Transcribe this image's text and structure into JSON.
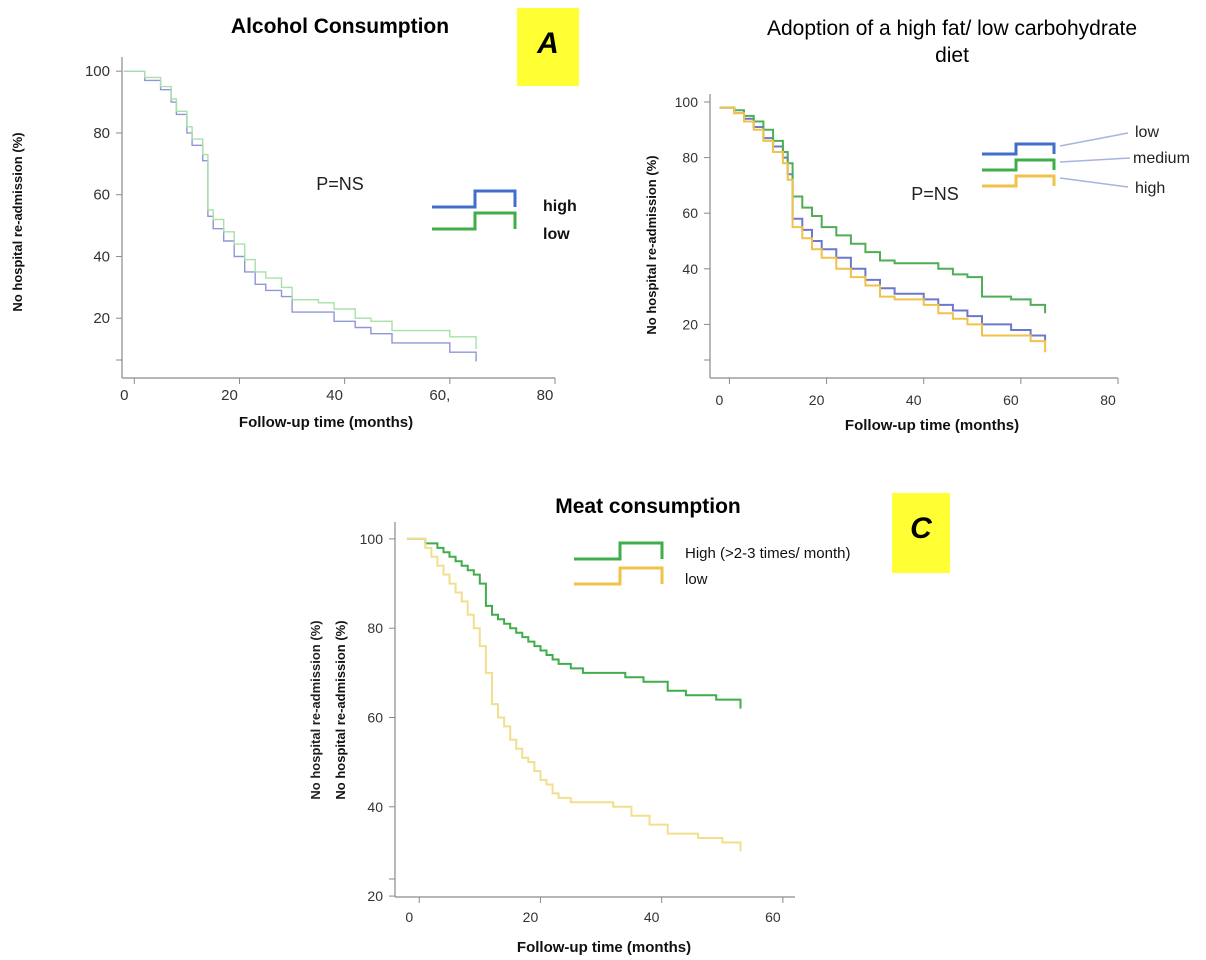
{
  "chart_data": [
    {
      "type": "line",
      "step": true,
      "panel_label": "A",
      "title": "Alcohol Consumption",
      "annotation": "P=NS",
      "xlabel": "Follow-up time (months)",
      "ylabel": "No hospital re-admission (%)",
      "xlim": [
        -5,
        80
      ],
      "ylim": [
        0,
        102
      ],
      "xticks": [
        0,
        20,
        40,
        60,
        80
      ],
      "xtick_labels": [
        "0",
        "20",
        "40",
        "60,",
        "80"
      ],
      "yticks": [
        20,
        40,
        60,
        80,
        100
      ],
      "ytick_labels": [
        "20",
        "40",
        "60",
        "80",
        "100"
      ],
      "legend_position": "right",
      "series": [
        {
          "name": "high",
          "color": "#8f96d8",
          "legend_color": "#3f6fc8",
          "bold": true,
          "x": [
            -2,
            2,
            5,
            7,
            8,
            10,
            11,
            13,
            14,
            15,
            17,
            19,
            21,
            23,
            25,
            28,
            30,
            35,
            38,
            42,
            45,
            49,
            55,
            60,
            65
          ],
          "y": [
            100,
            97,
            94,
            90,
            86,
            80,
            76,
            71,
            53,
            49,
            45,
            40,
            35,
            31,
            29,
            27,
            22,
            22,
            19,
            17,
            15,
            12,
            12,
            9,
            6
          ]
        },
        {
          "name": "low",
          "color": "#a8e0a8",
          "legend_color": "#3fae4a",
          "bold": true,
          "x": [
            -2,
            2,
            5,
            7,
            8,
            10,
            11,
            13,
            14,
            15,
            17,
            19,
            21,
            23,
            25,
            28,
            30,
            35,
            38,
            42,
            45,
            49,
            55,
            60,
            65
          ],
          "y": [
            100,
            98,
            95,
            91,
            87,
            82,
            78,
            73,
            55,
            52,
            48,
            44,
            39,
            35,
            33,
            30,
            26,
            25,
            23,
            20,
            19,
            16,
            16,
            14,
            10
          ]
        }
      ]
    },
    {
      "type": "line",
      "step": true,
      "title": "Adoption of a high fat/ low carbohydrate diet",
      "annotation": "P=NS",
      "xlabel": "Follow-up time (months)",
      "ylabel": "No hospital re-admission (%)",
      "xlim": [
        -4,
        80
      ],
      "ylim": [
        0,
        100
      ],
      "xticks": [
        0,
        20,
        40,
        60,
        80
      ],
      "xtick_labels": [
        "0",
        "20",
        "40",
        "60",
        "80"
      ],
      "yticks": [
        20,
        40,
        60,
        80,
        100
      ],
      "ytick_labels": [
        "20",
        "40",
        "60",
        "80",
        "100"
      ],
      "legend_position": "top-right",
      "series": [
        {
          "name": "low",
          "color": "#6b78cc",
          "legend_color": "#3f6fc8",
          "x": [
            -2,
            1,
            3,
            5,
            7,
            9,
            11,
            12,
            13,
            15,
            17,
            19,
            22,
            25,
            28,
            31,
            34,
            40,
            43,
            46,
            49,
            52,
            58,
            62,
            65
          ],
          "y": [
            98,
            96,
            94,
            91,
            87,
            84,
            80,
            74,
            58,
            54,
            50,
            47,
            44,
            40,
            36,
            33,
            31,
            29,
            27,
            25,
            23,
            20,
            18,
            16,
            14
          ]
        },
        {
          "name": "medium",
          "color": "#4fae55",
          "legend_color": "#3fae4a",
          "x": [
            -2,
            1,
            3,
            5,
            7,
            9,
            11,
            12,
            13,
            15,
            17,
            19,
            22,
            25,
            28,
            31,
            34,
            40,
            43,
            46,
            49,
            52,
            58,
            62,
            65
          ],
          "y": [
            98,
            97,
            95,
            93,
            90,
            86,
            82,
            78,
            66,
            62,
            59,
            55,
            52,
            49,
            46,
            43,
            42,
            42,
            40,
            38,
            37,
            30,
            29,
            27,
            24
          ]
        },
        {
          "name": "high",
          "color": "#f0c24a",
          "legend_color": "#f0c24a",
          "x": [
            -2,
            1,
            3,
            5,
            7,
            9,
            11,
            12,
            13,
            15,
            17,
            19,
            22,
            25,
            28,
            31,
            34,
            40,
            43,
            46,
            49,
            52,
            58,
            62,
            65
          ],
          "y": [
            98,
            96,
            93,
            90,
            86,
            82,
            78,
            72,
            55,
            51,
            47,
            44,
            40,
            37,
            34,
            30,
            29,
            27,
            24,
            22,
            20,
            16,
            16,
            14,
            10
          ]
        }
      ]
    },
    {
      "type": "line",
      "step": true,
      "panel_label": "C",
      "title": "Meat consumption",
      "xlabel": "Follow-up time (months)",
      "ylabel": "No hospital re-admission (%)",
      "ylabel_ghost": "No hospital re-admission (%)",
      "xlim": [
        -4,
        62
      ],
      "ylim": [
        18,
        102
      ],
      "xticks": [
        0,
        20,
        40,
        60
      ],
      "xtick_labels": [
        "0",
        "20",
        "40",
        "60"
      ],
      "yticks": [
        20,
        40,
        60,
        80,
        100
      ],
      "ytick_labels": [
        "20",
        "40",
        "60",
        "80",
        "100"
      ],
      "legend_position": "top-right",
      "series": [
        {
          "name": "High (>2-3 times/ month)",
          "color": "#3fae4a",
          "legend_color": "#3fae4a",
          "x": [
            -2,
            1,
            3,
            4,
            5,
            6,
            7,
            8,
            9,
            10,
            11,
            12,
            13,
            14,
            15,
            16,
            17,
            18,
            19,
            20,
            21,
            22,
            23,
            25,
            27,
            30,
            34,
            37,
            41,
            44,
            49,
            53
          ],
          "y": [
            100,
            99,
            98,
            97,
            96,
            95,
            94,
            93,
            92,
            90,
            85,
            83,
            82,
            81,
            80,
            79,
            78,
            77,
            76,
            75,
            74,
            73,
            72,
            71,
            70,
            70,
            69,
            68,
            66,
            65,
            64,
            62
          ]
        },
        {
          "name": "low",
          "color": "#f2df8e",
          "legend_color": "#f0c24a",
          "x": [
            -2,
            1,
            2,
            3,
            4,
            5,
            6,
            7,
            8,
            9,
            10,
            11,
            12,
            13,
            14,
            15,
            16,
            17,
            18,
            19,
            20,
            21,
            22,
            23,
            25,
            28,
            32,
            35,
            38,
            41,
            46,
            50,
            53
          ],
          "y": [
            100,
            98,
            96,
            94,
            92,
            90,
            88,
            86,
            83,
            80,
            76,
            70,
            63,
            60,
            58,
            55,
            53,
            51,
            50,
            48,
            46,
            45,
            43,
            42,
            41,
            41,
            40,
            38,
            36,
            34,
            33,
            32,
            30
          ]
        }
      ]
    }
  ]
}
